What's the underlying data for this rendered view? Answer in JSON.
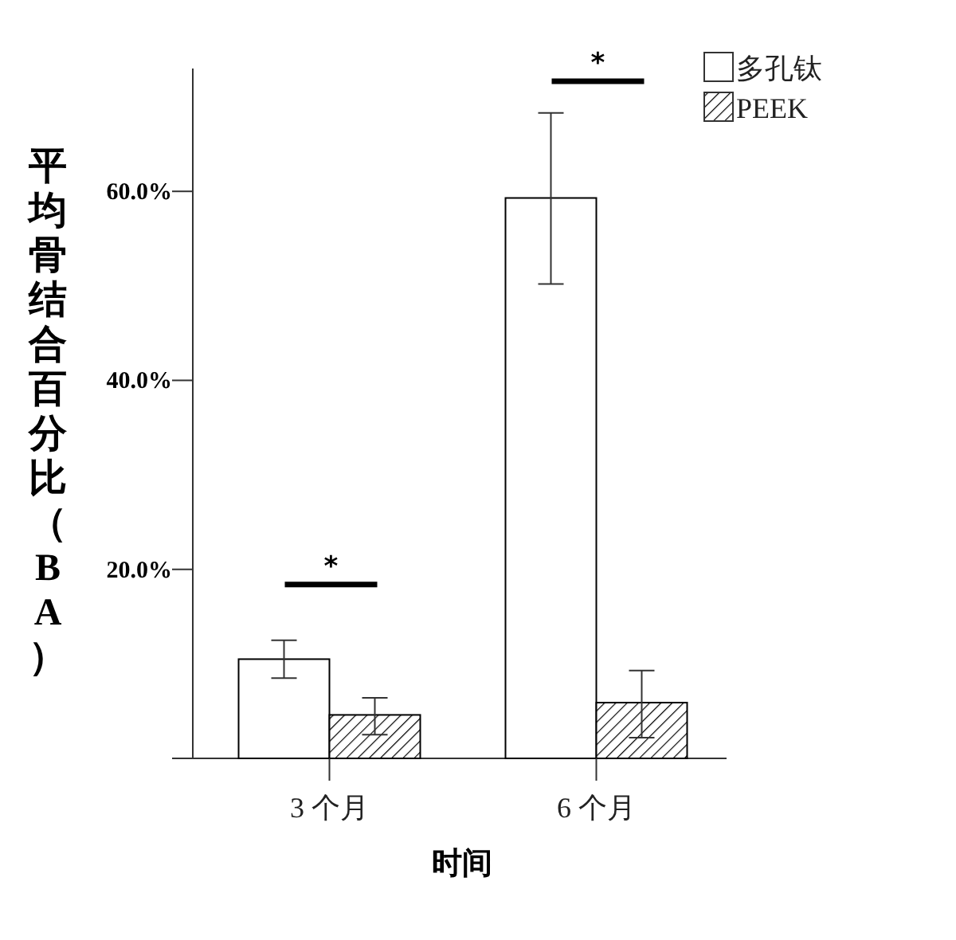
{
  "chart_data": {
    "type": "bar",
    "xlabel": "时间",
    "ylabel": "平均骨结合百分比（BA）",
    "categories": [
      "3 个月",
      "6 个月"
    ],
    "series": [
      {
        "name": "多孔钛",
        "color": "#ffffff",
        "values": [
          10.5,
          59.3
        ],
        "errors": [
          [
            8.5,
            12.5
          ],
          [
            50.2,
            68.3
          ]
        ]
      },
      {
        "name": "PEEK",
        "color": "#000000",
        "values": [
          4.6,
          5.9
        ],
        "errors": [
          [
            2.5,
            6.4
          ],
          [
            2.2,
            9.3
          ]
        ]
      }
    ],
    "ylim": [
      0,
      73
    ],
    "yticks": [
      {
        "value": 20,
        "label": "20.0%"
      },
      {
        "value": 40,
        "label": "40.0%"
      },
      {
        "value": 60,
        "label": "60.0%"
      }
    ],
    "annotations": [
      "*",
      "*"
    ],
    "legend": "top right"
  }
}
